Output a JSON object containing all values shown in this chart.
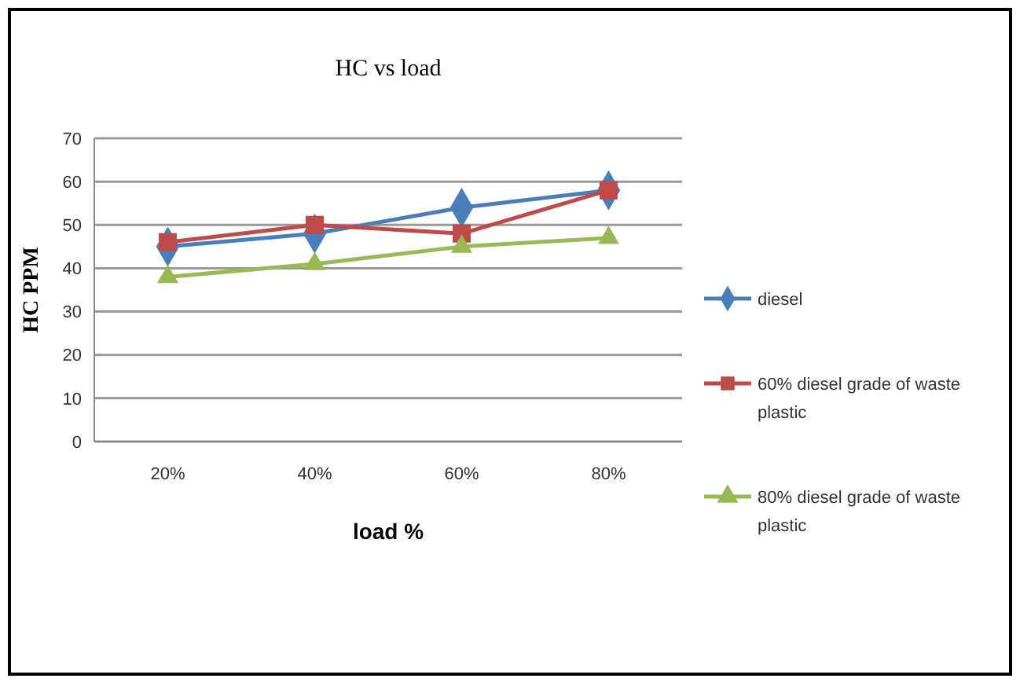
{
  "chart_data": {
    "type": "line",
    "title": "HC vs load",
    "xlabel": "load %",
    "ylabel": "HC  PPM",
    "categories": [
      "20%",
      "40%",
      "60%",
      "80%"
    ],
    "series": [
      {
        "name": "diesel",
        "color": "#4a7ebb",
        "marker": "diamond",
        "values": [
          45,
          48,
          54,
          58
        ]
      },
      {
        "name": "60%  diesel grade of waste plastic",
        "color": "#be4b48",
        "marker": "square",
        "values": [
          46,
          50,
          48,
          58
        ]
      },
      {
        "name": "80% diesel grade of waste plastic",
        "color": "#98b954",
        "marker": "triangle",
        "values": [
          38,
          41,
          45,
          47
        ]
      }
    ],
    "ylim": [
      0,
      70
    ],
    "yticks": [
      0,
      10,
      20,
      30,
      40,
      50,
      60,
      70
    ],
    "grid": "y",
    "legend": "right"
  }
}
